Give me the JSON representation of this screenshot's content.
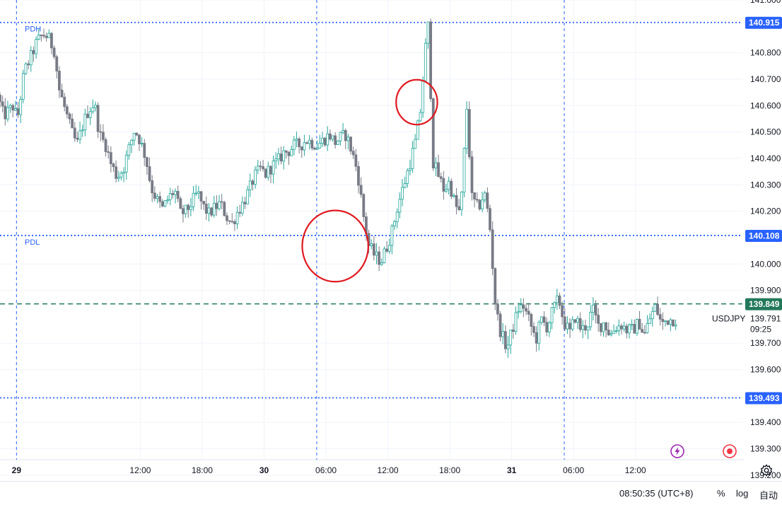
{
  "bottom_bar": {
    "clock": "08:50:35 (UTC+8)",
    "percent_label": "%",
    "log_label": "log",
    "auto_label": "自动"
  },
  "chart_data": {
    "type": "candlestick",
    "symbol": "USDJPY",
    "countdown": "09:25",
    "y_ticks": [
      "141.000",
      "140.800",
      "140.700",
      "140.600",
      "140.500",
      "140.400",
      "140.300",
      "140.200",
      "140.000",
      "139.900",
      "139.700",
      "139.600",
      "139.400",
      "139.300",
      "139.200"
    ],
    "x_ticks": [
      {
        "label": "29",
        "bold": true,
        "t": 0
      },
      {
        "label": "12:00",
        "bold": false,
        "t": 12
      },
      {
        "label": "18:00",
        "bold": false,
        "t": 18
      },
      {
        "label": "30",
        "bold": true,
        "t": 24
      },
      {
        "label": "06:00",
        "bold": false,
        "t": 30
      },
      {
        "label": "12:00",
        "bold": false,
        "t": 36
      },
      {
        "label": "18:00",
        "bold": false,
        "t": 42
      },
      {
        "label": "31",
        "bold": true,
        "t": 48
      },
      {
        "label": "06:00",
        "bold": false,
        "t": 54
      },
      {
        "label": "12:00",
        "bold": false,
        "t": 60
      }
    ],
    "y_range": [
      139.13,
      141.0
    ],
    "x_range_hours": [
      -1.6,
      64.2
    ],
    "session_separators_hours": [
      0,
      29.1,
      53.1
    ],
    "levels": [
      {
        "name": "PDH",
        "value": 140.915,
        "label": "140.915",
        "color": "#2962ff",
        "style": "dotted"
      },
      {
        "name": "PDL",
        "value": 140.108,
        "label": "140.108",
        "color": "#2962ff",
        "style": "dotted"
      },
      {
        "name": "",
        "value": 139.493,
        "label": "139.493",
        "color": "#2962ff",
        "style": "dotted"
      },
      {
        "name": "",
        "value": 139.849,
        "label": "139.849",
        "color": "#22795a",
        "style": "dashed"
      }
    ],
    "last_price": {
      "value": 139.791,
      "label": "139.791"
    },
    "annotations": [
      {
        "type": "ellipse",
        "color": "#e0191f",
        "center_time": 30.9,
        "center_price": 140.068,
        "time_radius": 3.2,
        "price_radius": 0.135
      },
      {
        "type": "ellipse",
        "color": "#e0191f",
        "center_time": 38.8,
        "center_price": 140.613,
        "time_radius": 2.0,
        "price_radius": 0.085
      }
    ],
    "price_path": [
      [
        -1.6,
        140.64
      ],
      [
        -1.0,
        140.56
      ],
      [
        0.0,
        140.6
      ],
      [
        0.3,
        140.54
      ],
      [
        1.0,
        140.73
      ],
      [
        1.6,
        140.78
      ],
      [
        2.2,
        140.84
      ],
      [
        2.8,
        140.87
      ],
      [
        3.3,
        140.86
      ],
      [
        3.9,
        140.81
      ],
      [
        4.4,
        140.66
      ],
      [
        5.0,
        140.58
      ],
      [
        5.6,
        140.5
      ],
      [
        6.1,
        140.45
      ],
      [
        6.7,
        140.53
      ],
      [
        7.2,
        140.58
      ],
      [
        7.8,
        140.61
      ],
      [
        8.3,
        140.49
      ],
      [
        8.9,
        140.45
      ],
      [
        9.4,
        140.38
      ],
      [
        10.0,
        140.33
      ],
      [
        10.6,
        140.36
      ],
      [
        11.1,
        140.43
      ],
      [
        11.7,
        140.51
      ],
      [
        12.2,
        140.47
      ],
      [
        12.8,
        140.4
      ],
      [
        13.3,
        140.29
      ],
      [
        13.9,
        140.24
      ],
      [
        14.4,
        140.21
      ],
      [
        15.0,
        140.25
      ],
      [
        15.6,
        140.28
      ],
      [
        16.1,
        140.19
      ],
      [
        16.7,
        140.2
      ],
      [
        17.2,
        140.23
      ],
      [
        17.8,
        140.27
      ],
      [
        18.3,
        140.22
      ],
      [
        18.9,
        140.19
      ],
      [
        19.4,
        140.21
      ],
      [
        20.0,
        140.23
      ],
      [
        20.6,
        140.18
      ],
      [
        21.1,
        140.15
      ],
      [
        21.7,
        140.2
      ],
      [
        22.2,
        140.23
      ],
      [
        22.8,
        140.28
      ],
      [
        23.3,
        140.33
      ],
      [
        23.9,
        140.36
      ],
      [
        24.4,
        140.34
      ],
      [
        25.0,
        140.37
      ],
      [
        25.6,
        140.39
      ],
      [
        26.1,
        140.42
      ],
      [
        26.7,
        140.43
      ],
      [
        27.2,
        140.45
      ],
      [
        27.8,
        140.45
      ],
      [
        28.3,
        140.47
      ],
      [
        28.9,
        140.46
      ],
      [
        29.4,
        140.45
      ],
      [
        30.0,
        140.47
      ],
      [
        30.6,
        140.49
      ],
      [
        31.1,
        140.46
      ],
      [
        31.7,
        140.48
      ],
      [
        32.2,
        140.49
      ],
      [
        32.8,
        140.42
      ],
      [
        33.3,
        140.35
      ],
      [
        33.9,
        140.18
      ],
      [
        34.4,
        140.07
      ],
      [
        35.0,
        140.03
      ],
      [
        35.6,
        140.01
      ],
      [
        36.1,
        140.06
      ],
      [
        36.7,
        140.13
      ],
      [
        37.2,
        140.22
      ],
      [
        37.8,
        140.3
      ],
      [
        38.3,
        140.37
      ],
      [
        38.9,
        140.46
      ],
      [
        39.4,
        140.58
      ],
      [
        40.0,
        140.87
      ],
      [
        40.2,
        140.91
      ],
      [
        40.6,
        140.39
      ],
      [
        41.1,
        140.34
      ],
      [
        41.7,
        140.28
      ],
      [
        42.2,
        140.31
      ],
      [
        42.8,
        140.22
      ],
      [
        43.3,
        140.19
      ],
      [
        43.9,
        140.59
      ],
      [
        44.4,
        140.25
      ],
      [
        45.0,
        140.21
      ],
      [
        45.6,
        140.27
      ],
      [
        46.1,
        140.16
      ],
      [
        46.7,
        139.83
      ],
      [
        47.2,
        139.74
      ],
      [
        47.8,
        139.68
      ],
      [
        48.3,
        139.75
      ],
      [
        48.9,
        139.83
      ],
      [
        49.4,
        139.84
      ],
      [
        50.0,
        139.78
      ],
      [
        50.6,
        139.71
      ],
      [
        51.1,
        139.79
      ],
      [
        51.7,
        139.76
      ],
      [
        52.2,
        139.82
      ],
      [
        52.8,
        139.87
      ],
      [
        53.3,
        139.78
      ],
      [
        53.9,
        139.74
      ],
      [
        54.4,
        139.8
      ],
      [
        55.0,
        139.75
      ],
      [
        55.6,
        139.77
      ],
      [
        56.1,
        139.83
      ],
      [
        56.7,
        139.76
      ],
      [
        57.2,
        139.78
      ],
      [
        57.8,
        139.73
      ],
      [
        58.3,
        139.76
      ],
      [
        58.9,
        139.77
      ],
      [
        59.4,
        139.75
      ],
      [
        60.0,
        139.75
      ],
      [
        60.6,
        139.78
      ],
      [
        61.1,
        139.73
      ],
      [
        61.7,
        139.8
      ],
      [
        62.2,
        139.84
      ],
      [
        62.8,
        139.77
      ],
      [
        63.3,
        139.79
      ],
      [
        63.9,
        139.79
      ]
    ]
  }
}
